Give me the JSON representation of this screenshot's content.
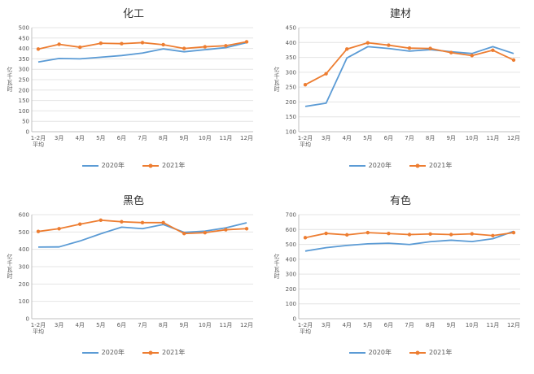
{
  "page": {
    "background": "#FFFFFF"
  },
  "chart_data": [
    {
      "type": "line",
      "title": "化工",
      "ylabel": "亿千瓦时",
      "ymin": 0,
      "ymax": 500,
      "ystep": 50,
      "grid": true,
      "legend_position": "bottom",
      "categories": [
        "1-2月\n平均",
        "3月",
        "4月",
        "5月",
        "6月",
        "7月",
        "8月",
        "9月",
        "10月",
        "11月",
        "12月"
      ],
      "series": [
        {
          "name": "2020年",
          "color": "#5B9BD5",
          "marker": false,
          "values": [
            335,
            352,
            350,
            358,
            366,
            378,
            398,
            384,
            394,
            404,
            428
          ]
        },
        {
          "name": "2021年",
          "color": "#ED7D31",
          "marker": true,
          "values": [
            397,
            420,
            406,
            425,
            423,
            428,
            418,
            400,
            408,
            413,
            432
          ]
        }
      ]
    },
    {
      "type": "line",
      "title": "建材",
      "ylabel": "亿千瓦时",
      "ymin": 100,
      "ymax": 450,
      "ystep": 50,
      "grid": true,
      "legend_position": "bottom",
      "categories": [
        "1-2月\n平均",
        "3月",
        "4月",
        "5月",
        "6月",
        "7月",
        "8月",
        "9月",
        "10月",
        "11月",
        "12月"
      ],
      "series": [
        {
          "name": "2020年",
          "color": "#5B9BD5",
          "marker": false,
          "values": [
            185,
            196,
            348,
            386,
            380,
            371,
            376,
            369,
            363,
            386,
            363
          ]
        },
        {
          "name": "2021年",
          "color": "#ED7D31",
          "marker": true,
          "values": [
            258,
            295,
            378,
            399,
            391,
            381,
            380,
            366,
            356,
            374,
            341
          ]
        }
      ]
    },
    {
      "type": "line",
      "title": "黑色",
      "ylabel": "亿千瓦时",
      "ymin": 0,
      "ymax": 600,
      "ystep": 100,
      "grid": true,
      "legend_position": "bottom",
      "categories": [
        "1-2月\n平均",
        "3月",
        "4月",
        "5月",
        "6月",
        "7月",
        "8月",
        "9月",
        "10月",
        "11月",
        "12月"
      ],
      "series": [
        {
          "name": "2020年",
          "color": "#5B9BD5",
          "marker": false,
          "values": [
            413,
            414,
            448,
            490,
            528,
            519,
            543,
            498,
            505,
            524,
            553
          ]
        },
        {
          "name": "2021年",
          "color": "#ED7D31",
          "marker": true,
          "values": [
            503,
            519,
            545,
            568,
            559,
            554,
            554,
            491,
            496,
            513,
            519
          ]
        }
      ]
    },
    {
      "type": "line",
      "title": "有色",
      "ylabel": "亿千瓦时",
      "ymin": 0,
      "ymax": 700,
      "ystep": 100,
      "grid": true,
      "legend_position": "bottom",
      "categories": [
        "1-2月\n平均",
        "3月",
        "4月",
        "5月",
        "6月",
        "7月",
        "8月",
        "9月",
        "10月",
        "11月",
        "12月"
      ],
      "series": [
        {
          "name": "2020年",
          "color": "#5B9BD5",
          "marker": false,
          "values": [
            455,
            478,
            493,
            504,
            508,
            499,
            518,
            528,
            519,
            538,
            588
          ]
        },
        {
          "name": "2021年",
          "color": "#ED7D31",
          "marker": true,
          "values": [
            545,
            574,
            564,
            579,
            573,
            566,
            570,
            566,
            571,
            559,
            579
          ]
        }
      ]
    }
  ]
}
